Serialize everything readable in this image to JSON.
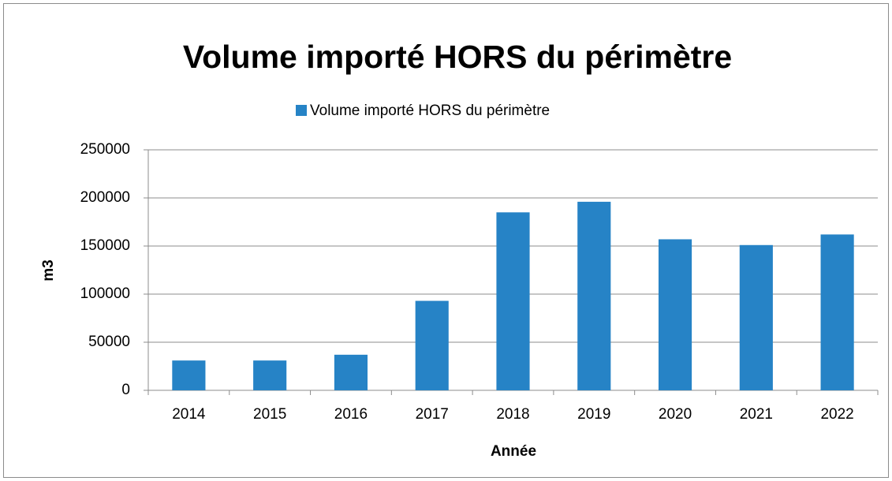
{
  "chart_data": {
    "type": "bar",
    "title": "Volume importé HORS du périmètre",
    "legend": "Volume importé HORS du périmètre",
    "x_label": "Année",
    "y_label": "m3",
    "categories": [
      "2014",
      "2015",
      "2016",
      "2017",
      "2018",
      "2019",
      "2020",
      "2021",
      "2022"
    ],
    "values": [
      31000,
      31000,
      37000,
      93000,
      185000,
      196000,
      157000,
      151000,
      162000
    ],
    "color": "#2683c6",
    "ylim": [
      0,
      250000
    ],
    "yticks": [
      0,
      50000,
      100000,
      150000,
      200000,
      250000
    ],
    "grid": true
  }
}
